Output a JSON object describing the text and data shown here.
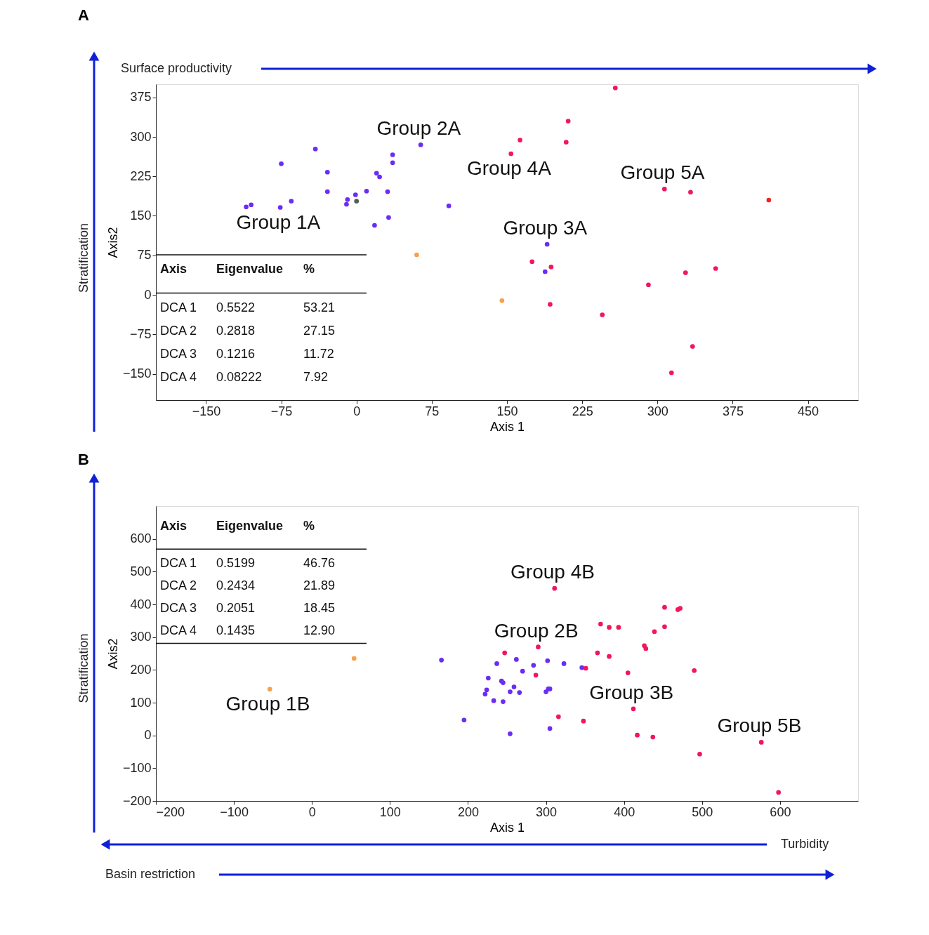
{
  "chart_data": [
    {
      "type": "scatter",
      "title": "A",
      "xlabel": "Axis 1",
      "ylabel": "Axis2",
      "xlim": [
        -200,
        500
      ],
      "ylim": [
        -200,
        400
      ],
      "xticks": [
        -150,
        -75,
        0,
        75,
        150,
        225,
        300,
        375,
        450
      ],
      "yticks": [
        -150,
        -75,
        0,
        75,
        150,
        225,
        300,
        375
      ],
      "grid": false,
      "marker": "circle",
      "annotations": [
        "Surface productivity",
        "Stratification",
        "Axis",
        "Eigenvalue",
        "%",
        "DCA 1",
        "0.5522",
        "53.21",
        "DCA 2",
        "0.2818",
        "27.15",
        "DCA 3",
        "0.1216",
        "11.72",
        "DCA 4",
        "0.08222",
        "7.92"
      ],
      "series": [
        {
          "name": "Group 1A",
          "x": [
            -75,
            -110,
            -105,
            -76,
            -65
          ],
          "values": [
            249,
            167,
            171,
            166,
            178
          ],
          "colors": [
            "#6b2cf5",
            "#6b2cf5",
            "#6b2cf5",
            "#6b2cf5",
            "#6b2cf5"
          ]
        },
        {
          "name": "Group 2A",
          "x": [
            -41,
            -29,
            -29,
            -9,
            -10,
            -1,
            0,
            10,
            20,
            23,
            31,
            36,
            36,
            64,
            18,
            32,
            92,
            60
          ],
          "values": [
            277,
            233,
            196,
            181,
            172,
            190,
            178,
            197,
            231,
            224,
            196,
            266,
            251,
            285,
            132,
            147,
            169,
            76
          ],
          "colors": [
            "#6b2cf5",
            "#6b2cf5",
            "#6b2cf5",
            "#6b2cf5",
            "#6b2cf5",
            "#6b2cf5",
            "#4f5f55",
            "#6b2cf5",
            "#6b2cf5",
            "#6b2cf5",
            "#6b2cf5",
            "#6b2cf5",
            "#6b2cf5",
            "#6b2cf5",
            "#6b2cf5",
            "#6b2cf5",
            "#6b2cf5",
            "#f9a04a"
          ]
        },
        {
          "name": "Group 3A",
          "x": [
            190,
            188,
            175,
            194,
            193,
            145
          ],
          "values": [
            96,
            44,
            63,
            53,
            -18,
            -11
          ],
          "colors": [
            "#6b2cf5",
            "#6b2cf5",
            "#f2175a",
            "#f2175a",
            "#f2175a",
            "#f9a04a"
          ]
        },
        {
          "name": "Group 4A",
          "x": [
            154,
            163,
            211,
            209,
            258
          ],
          "values": [
            268,
            294,
            330,
            290,
            393
          ],
          "colors": [
            "#f2175a",
            "#f2175a",
            "#f2175a",
            "#f2175a",
            "#f2175a"
          ]
        },
        {
          "name": "Group 5A",
          "x": [
            245,
            307,
            333,
            291,
            328,
            358,
            335,
            314
          ],
          "values": [
            -38,
            201,
            195,
            19,
            42,
            50,
            -98,
            -148
          ],
          "colors": [
            "#f2175a",
            "#f2175a",
            "#f2175a",
            "#f2175a",
            "#f2175a",
            "#f2175a",
            "#f2175a",
            "#f2175a"
          ]
        },
        {
          "x": [
            411
          ],
          "values": [
            180
          ],
          "colors": [
            "#f5231e"
          ]
        }
      ]
    },
    {
      "type": "scatter",
      "title": "B",
      "xlabel": "Axis 1",
      "ylabel": "Axis2",
      "xlim": [
        -200,
        700
      ],
      "ylim": [
        -200,
        700
      ],
      "xticks": [
        -200,
        -100,
        0,
        100,
        200,
        300,
        400,
        500,
        600
      ],
      "yticks": [
        -200,
        -100,
        0,
        100,
        200,
        300,
        400,
        500,
        600
      ],
      "grid": false,
      "marker": "circle",
      "annotations": [
        "Stratification",
        "Turbidity",
        "Basin restriction",
        "Axis",
        "Eigenvalue",
        "%",
        "DCA 1",
        "0.5199",
        "46.76",
        "DCA 2",
        "0.2434",
        "21.89",
        "DCA 3",
        "0.2051",
        "18.45",
        "DCA 4",
        "0.1435",
        "12.90"
      ],
      "series": [
        {
          "name": "Group 1B",
          "x": [
            54,
            -54
          ],
          "values": [
            235,
            141
          ],
          "colors": [
            "#f9a04a",
            "#f9a04a"
          ]
        },
        {
          "name": "Group 2B",
          "x": [
            166,
            195,
            254,
            305,
            237,
            226,
            243,
            245,
            262,
            270,
            284,
            302,
            323,
            346,
            224,
            222,
            233,
            245,
            254,
            259,
            266,
            300,
            303,
            305,
            247,
            290,
            287,
            351
          ],
          "values": [
            230,
            47,
            5,
            21,
            219,
            175,
            166,
            161,
            232,
            196,
            214,
            228,
            219,
            207,
            139,
            126,
            106,
            103,
            133,
            148,
            131,
            133,
            142,
            142,
            252,
            270,
            184,
            205
          ],
          "colors": [
            "#6b2cf5",
            "#6b2cf5",
            "#6b2cf5",
            "#6b2cf5",
            "#6b2cf5",
            "#6b2cf5",
            "#6b2cf5",
            "#6b2cf5",
            "#6b2cf5",
            "#6b2cf5",
            "#6b2cf5",
            "#6b2cf5",
            "#6b2cf5",
            "#6b2cf5",
            "#6b2cf5",
            "#6b2cf5",
            "#6b2cf5",
            "#6b2cf5",
            "#6b2cf5",
            "#6b2cf5",
            "#6b2cf5",
            "#6b2cf5",
            "#6b2cf5",
            "#6b2cf5",
            "#f2175a",
            "#f2175a",
            "#f2175a",
            "#f2175a"
          ]
        },
        {
          "name": "Group 3B",
          "x": [
            316,
            348,
            412,
            417,
            437
          ],
          "values": [
            57,
            44,
            81,
            1,
            -5
          ],
          "colors": [
            "#f2175a",
            "#f2175a",
            "#f2175a",
            "#f2175a",
            "#f2175a"
          ]
        },
        {
          "name": "Group 4B",
          "x": [
            311,
            370,
            381,
            393,
            366,
            381,
            452,
            469,
            472,
            439,
            452,
            426,
            428,
            405,
            490
          ],
          "values": [
            449,
            340,
            330,
            330,
            252,
            241,
            391,
            384,
            388,
            317,
            332,
            274,
            265,
            191,
            198
          ],
          "colors": [
            "#f2175a",
            "#f2175a",
            "#f2175a",
            "#f2175a",
            "#f2175a",
            "#f2175a",
            "#f2175a",
            "#f2175a",
            "#f2175a",
            "#f2175a",
            "#f2175a",
            "#f2175a",
            "#f2175a",
            "#f2175a",
            "#f2175a"
          ]
        },
        {
          "name": "Group 5B",
          "x": [
            497,
            576,
            598
          ],
          "values": [
            -57,
            -21,
            -174
          ],
          "colors": [
            "#f2175a",
            "#f2175a",
            "#f2175a"
          ]
        }
      ]
    }
  ]
}
